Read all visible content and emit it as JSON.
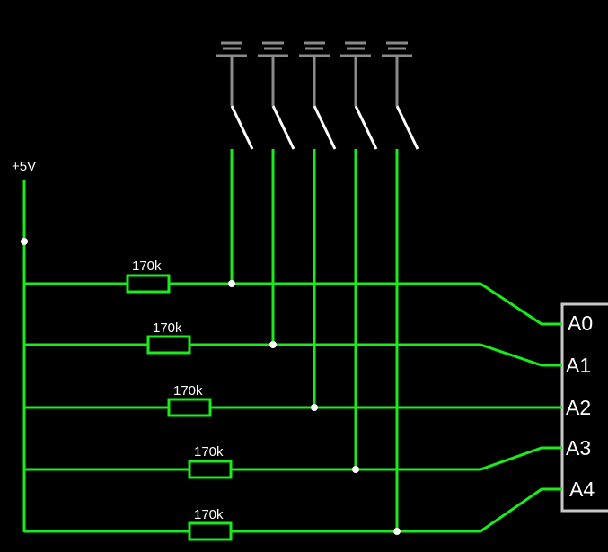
{
  "supply": {
    "label": "+5V"
  },
  "resistors": [
    {
      "label": "170k"
    },
    {
      "label": "170k"
    },
    {
      "label": "170k"
    },
    {
      "label": "170k"
    },
    {
      "label": "170k"
    }
  ],
  "chip": {
    "pins": [
      "A0",
      "A1",
      "A2",
      "A3",
      "A4"
    ]
  },
  "colors": {
    "wire": "#1aeb1a",
    "background": "#000000",
    "switch_ground": "#8a8a8a",
    "switch_blade": "#ffffff",
    "chip_outline": "#c8c8c8",
    "junction": "#ffffff"
  }
}
